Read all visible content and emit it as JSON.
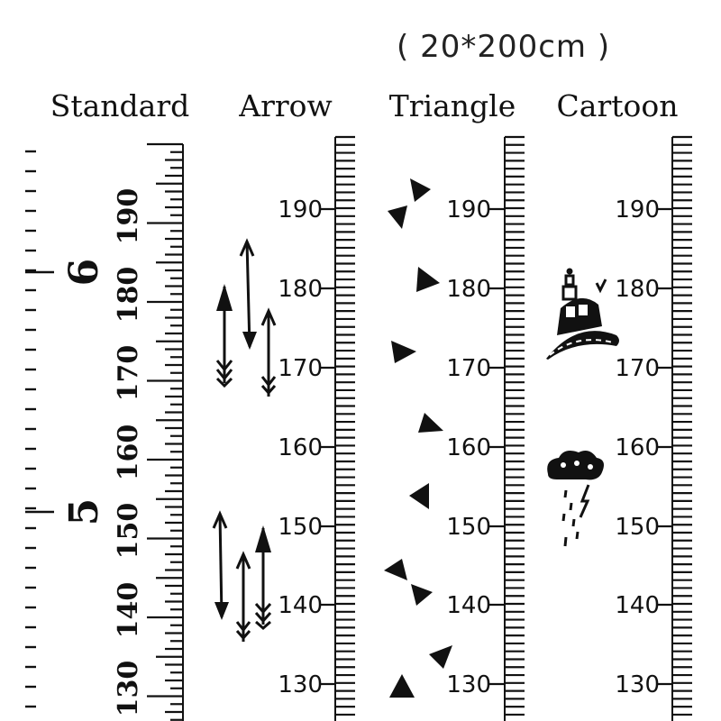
{
  "header": {
    "size_label": "( 20*200cm )"
  },
  "rulers": [
    {
      "title": "Standard",
      "decor": "tick-marks",
      "numbers": [
        "190",
        "180",
        "170",
        "160",
        "150",
        "140",
        "130"
      ],
      "feet": [
        "6",
        "5"
      ]
    },
    {
      "title": "Arrow",
      "decor": "arrow-icons",
      "numbers": [
        "190",
        "180",
        "170",
        "160",
        "150",
        "140",
        "130"
      ]
    },
    {
      "title": "Triangle",
      "decor": "triangle-icons",
      "numbers": [
        "190",
        "180",
        "170",
        "160",
        "150",
        "140",
        "130"
      ]
    },
    {
      "title": "Cartoon",
      "decor": "cartoon-icons",
      "numbers": [
        "190",
        "180",
        "170",
        "160",
        "150",
        "140",
        "130"
      ],
      "icons": [
        "car-on-road-icon",
        "rain-cloud-icon"
      ]
    }
  ],
  "colors": {
    "ink": "#111111",
    "background": "#ffffff"
  }
}
